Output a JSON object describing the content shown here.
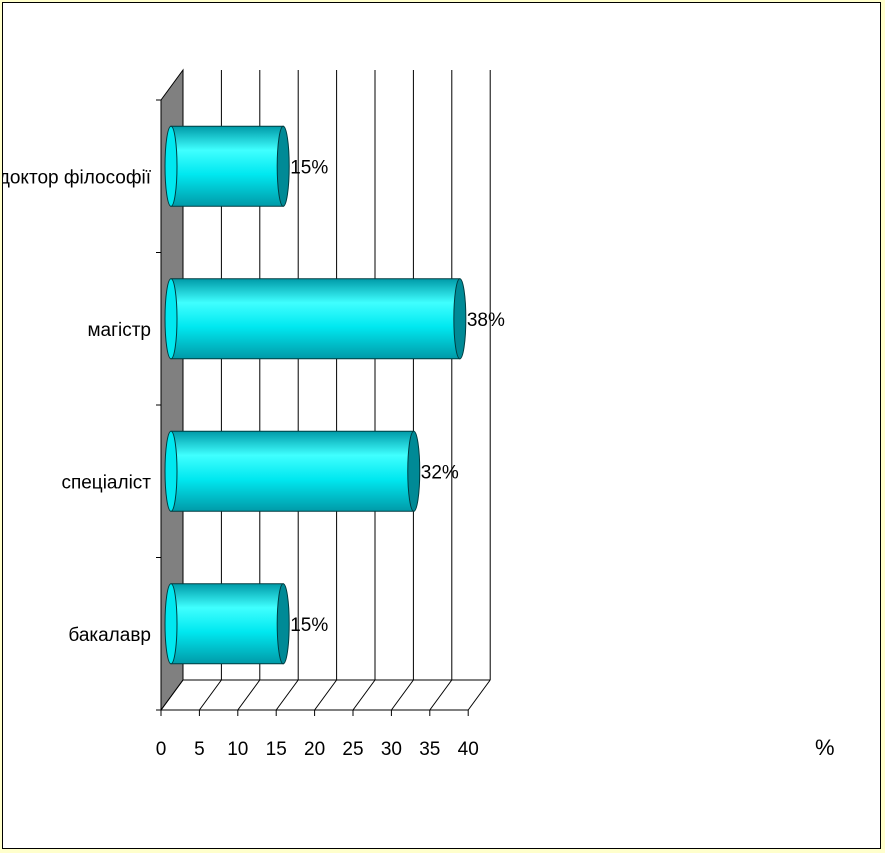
{
  "chart_data": {
    "type": "bar",
    "orientation": "horizontal",
    "style": "3d-cylinder",
    "categories": [
      "бакалавр",
      "спеціаліст",
      "магістр",
      "доктор філософії"
    ],
    "values": [
      15,
      32,
      38,
      15
    ],
    "value_labels": [
      "15%",
      "32%",
      "38%",
      "15%"
    ],
    "x_ticks": [
      "0",
      "5",
      "10",
      "15",
      "20",
      "25",
      "30",
      "35",
      "40"
    ],
    "xlim": [
      0,
      40
    ],
    "x_unit": "%",
    "grid": true,
    "legend": "none",
    "colors": {
      "bar_fill": "#00e8f0",
      "bar_highlight": "#40ffff",
      "bar_shade": "#009aa8",
      "bar_end": "#008a96",
      "side_wall": "#808080",
      "gridline": "#000000",
      "background": "#ffffcc",
      "plot_background": "#ffffff"
    }
  }
}
